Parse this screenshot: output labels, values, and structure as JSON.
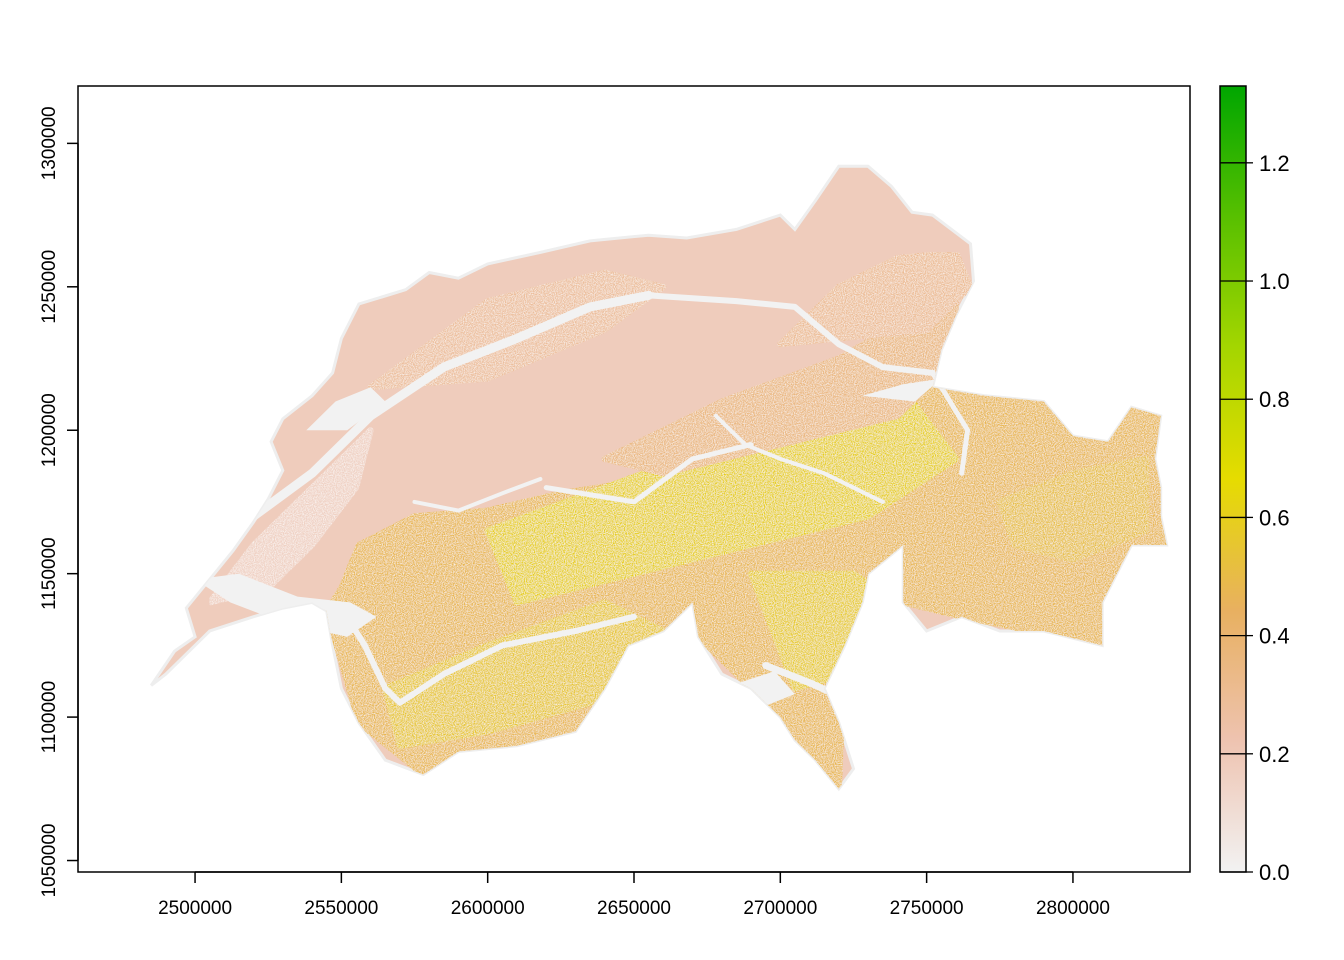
{
  "chart_data": {
    "type": "heatmap",
    "title": "",
    "xlabel": "",
    "ylabel": "",
    "xlim": [
      2460000,
      2840000
    ],
    "ylim": [
      1046000,
      1320000
    ],
    "x_ticks": [
      {
        "value": 2500000,
        "label": "2500000"
      },
      {
        "value": 2550000,
        "label": "2550000"
      },
      {
        "value": 2600000,
        "label": "2600000"
      },
      {
        "value": 2650000,
        "label": "2650000"
      },
      {
        "value": 2700000,
        "label": "2700000"
      },
      {
        "value": 2750000,
        "label": "2750000"
      },
      {
        "value": 2800000,
        "label": "2800000"
      }
    ],
    "y_ticks": [
      {
        "value": 1050000,
        "label": "1050000"
      },
      {
        "value": 1100000,
        "label": "1100000"
      },
      {
        "value": 1150000,
        "label": "1150000"
      },
      {
        "value": 1200000,
        "label": "1200000"
      },
      {
        "value": 1250000,
        "label": "1250000"
      },
      {
        "value": 1300000,
        "label": "1300000"
      }
    ],
    "colorbar": {
      "range": [
        0.0,
        1.33
      ],
      "ticks": [
        {
          "value": 0.0,
          "label": "0.0"
        },
        {
          "value": 0.2,
          "label": "0.2"
        },
        {
          "value": 0.4,
          "label": "0.4"
        },
        {
          "value": 0.6,
          "label": "0.6"
        },
        {
          "value": 0.8,
          "label": "0.8"
        },
        {
          "value": 1.0,
          "label": "1.0"
        },
        {
          "value": 1.2,
          "label": "1.2"
        }
      ],
      "colors": [
        "#f2f2f2",
        "#eec3b0",
        "#e8b060",
        "#e6dc00",
        "#a4d600",
        "#58c000",
        "#00a600"
      ]
    },
    "outline": [
      [
        2485000,
        1111000
      ],
      [
        2493000,
        1123000
      ],
      [
        2500000,
        1128000
      ],
      [
        2497000,
        1138000
      ],
      [
        2505000,
        1148000
      ],
      [
        2513000,
        1158000
      ],
      [
        2520000,
        1168000
      ],
      [
        2525000,
        1176000
      ],
      [
        2530000,
        1186000
      ],
      [
        2526000,
        1196000
      ],
      [
        2530000,
        1204000
      ],
      [
        2540000,
        1212000
      ],
      [
        2547000,
        1220000
      ],
      [
        2550000,
        1232000
      ],
      [
        2556000,
        1244000
      ],
      [
        2572000,
        1249000
      ],
      [
        2580000,
        1255000
      ],
      [
        2590000,
        1253000
      ],
      [
        2600000,
        1258000
      ],
      [
        2618000,
        1262000
      ],
      [
        2635000,
        1266000
      ],
      [
        2655000,
        1268000
      ],
      [
        2668000,
        1267000
      ],
      [
        2685000,
        1270000
      ],
      [
        2700000,
        1275000
      ],
      [
        2705000,
        1270000
      ],
      [
        2712000,
        1280000
      ],
      [
        2720000,
        1292000
      ],
      [
        2730000,
        1292000
      ],
      [
        2738000,
        1285000
      ],
      [
        2745000,
        1276000
      ],
      [
        2752000,
        1275000
      ],
      [
        2765000,
        1265000
      ],
      [
        2766000,
        1252000
      ],
      [
        2760000,
        1240000
      ],
      [
        2755000,
        1228000
      ],
      [
        2752000,
        1215000
      ],
      [
        2770000,
        1212000
      ],
      [
        2790000,
        1210000
      ],
      [
        2800000,
        1198000
      ],
      [
        2812000,
        1196000
      ],
      [
        2820000,
        1208000
      ],
      [
        2830000,
        1205000
      ],
      [
        2828000,
        1190000
      ],
      [
        2830000,
        1180000
      ],
      [
        2830000,
        1170000
      ],
      [
        2832000,
        1160000
      ],
      [
        2820000,
        1160000
      ],
      [
        2815000,
        1150000
      ],
      [
        2810000,
        1140000
      ],
      [
        2810000,
        1125000
      ],
      [
        2790000,
        1130000
      ],
      [
        2775000,
        1130000
      ],
      [
        2762000,
        1135000
      ],
      [
        2750000,
        1130000
      ],
      [
        2742000,
        1140000
      ],
      [
        2742000,
        1160000
      ],
      [
        2730000,
        1150000
      ],
      [
        2728000,
        1140000
      ],
      [
        2722000,
        1125000
      ],
      [
        2715000,
        1110000
      ],
      [
        2720000,
        1098000
      ],
      [
        2725000,
        1082000
      ],
      [
        2720000,
        1075000
      ],
      [
        2712000,
        1085000
      ],
      [
        2705000,
        1092000
      ],
      [
        2700000,
        1100000
      ],
      [
        2690000,
        1110000
      ],
      [
        2680000,
        1115000
      ],
      [
        2672000,
        1128000
      ],
      [
        2670000,
        1140000
      ],
      [
        2660000,
        1130000
      ],
      [
        2648000,
        1125000
      ],
      [
        2640000,
        1110000
      ],
      [
        2630000,
        1095000
      ],
      [
        2610000,
        1090000
      ],
      [
        2590000,
        1088000
      ],
      [
        2578000,
        1080000
      ],
      [
        2565000,
        1085000
      ],
      [
        2556000,
        1098000
      ],
      [
        2550000,
        1110000
      ],
      [
        2547000,
        1125000
      ],
      [
        2545000,
        1137000
      ],
      [
        2540000,
        1140000
      ],
      [
        2530000,
        1138000
      ],
      [
        2520000,
        1135000
      ],
      [
        2505000,
        1130000
      ],
      [
        2490000,
        1115000
      ]
    ],
    "regions": [
      {
        "points": [
          [
            2550000,
            1145000
          ],
          [
            2556000,
            1160000
          ],
          [
            2575000,
            1170000
          ],
          [
            2600000,
            1172000
          ],
          [
            2625000,
            1178000
          ],
          [
            2650000,
            1182000
          ],
          [
            2680000,
            1190000
          ],
          [
            2710000,
            1195000
          ],
          [
            2735000,
            1205000
          ],
          [
            2752000,
            1215000
          ],
          [
            2770000,
            1212000
          ],
          [
            2790000,
            1210000
          ],
          [
            2800000,
            1198000
          ],
          [
            2812000,
            1196000
          ],
          [
            2820000,
            1208000
          ],
          [
            2830000,
            1205000
          ],
          [
            2832000,
            1160000
          ],
          [
            2815000,
            1150000
          ],
          [
            2810000,
            1125000
          ],
          [
            2762000,
            1135000
          ],
          [
            2742000,
            1140000
          ],
          [
            2722000,
            1125000
          ],
          [
            2720000,
            1075000
          ],
          [
            2700000,
            1100000
          ],
          [
            2672000,
            1128000
          ],
          [
            2660000,
            1130000
          ],
          [
            2630000,
            1095000
          ],
          [
            2578000,
            1080000
          ],
          [
            2556000,
            1098000
          ],
          [
            2545000,
            1137000
          ]
        ],
        "value": 0.48
      },
      {
        "points": [
          [
            2600000,
            1165000
          ],
          [
            2640000,
            1180000
          ],
          [
            2680000,
            1195000
          ],
          [
            2720000,
            1205000
          ],
          [
            2745000,
            1210000
          ],
          [
            2760000,
            1190000
          ],
          [
            2730000,
            1170000
          ],
          [
            2690000,
            1160000
          ],
          [
            2650000,
            1150000
          ],
          [
            2610000,
            1140000
          ]
        ],
        "value": 0.6
      },
      {
        "points": [
          [
            2565000,
            1110000
          ],
          [
            2600000,
            1125000
          ],
          [
            2640000,
            1140000
          ],
          [
            2660000,
            1130000
          ],
          [
            2635000,
            1105000
          ],
          [
            2600000,
            1095000
          ],
          [
            2570000,
            1090000
          ]
        ],
        "value": 0.56
      },
      {
        "points": [
          [
            2690000,
            1150000
          ],
          [
            2725000,
            1150000
          ],
          [
            2740000,
            1140000
          ],
          [
            2722000,
            1115000
          ],
          [
            2705000,
            1110000
          ]
        ],
        "value": 0.58
      },
      {
        "points": [
          [
            2775000,
            1175000
          ],
          [
            2800000,
            1185000
          ],
          [
            2825000,
            1190000
          ],
          [
            2825000,
            1165000
          ],
          [
            2800000,
            1155000
          ],
          [
            2780000,
            1160000
          ]
        ],
        "value": 0.52
      },
      {
        "points": [
          [
            2640000,
            1190000
          ],
          [
            2680000,
            1210000
          ],
          [
            2720000,
            1225000
          ],
          [
            2745000,
            1240000
          ],
          [
            2760000,
            1245000
          ],
          [
            2760000,
            1225000
          ],
          [
            2740000,
            1205000
          ],
          [
            2700000,
            1195000
          ],
          [
            2660000,
            1185000
          ]
        ],
        "value": 0.36
      },
      {
        "points": [
          [
            2700000,
            1230000
          ],
          [
            2720000,
            1250000
          ],
          [
            2740000,
            1260000
          ],
          [
            2760000,
            1262000
          ],
          [
            2765000,
            1250000
          ],
          [
            2750000,
            1235000
          ]
        ],
        "value": 0.3
      },
      {
        "points": [
          [
            2560000,
            1215000
          ],
          [
            2600000,
            1245000
          ],
          [
            2640000,
            1255000
          ],
          [
            2660000,
            1250000
          ],
          [
            2640000,
            1235000
          ],
          [
            2600000,
            1218000
          ]
        ],
        "value": 0.28
      },
      {
        "points": [
          [
            2505000,
            1140000
          ],
          [
            2520000,
            1160000
          ],
          [
            2535000,
            1175000
          ],
          [
            2550000,
            1190000
          ],
          [
            2560000,
            1200000
          ],
          [
            2555000,
            1180000
          ],
          [
            2540000,
            1160000
          ],
          [
            2525000,
            1145000
          ]
        ],
        "value": 0.16
      }
    ],
    "rivers": [
      {
        "points": [
          [
            2500000,
            1155000
          ],
          [
            2520000,
            1170000
          ],
          [
            2540000,
            1185000
          ],
          [
            2560000,
            1205000
          ],
          [
            2585000,
            1222000
          ],
          [
            2610000,
            1232000
          ],
          [
            2635000,
            1243000
          ],
          [
            2655000,
            1247000
          ]
        ],
        "width": 9
      },
      {
        "points": [
          [
            2655000,
            1247000
          ],
          [
            2685000,
            1245000
          ],
          [
            2705000,
            1243000
          ],
          [
            2720000,
            1230000
          ],
          [
            2735000,
            1222000
          ],
          [
            2752000,
            1220000
          ]
        ],
        "width": 6
      },
      {
        "points": [
          [
            2752000,
            1220000
          ],
          [
            2758000,
            1210000
          ],
          [
            2764000,
            1200000
          ],
          [
            2762000,
            1185000
          ]
        ],
        "width": 5
      },
      {
        "points": [
          [
            2550000,
            1138000
          ],
          [
            2558000,
            1125000
          ],
          [
            2565000,
            1110000
          ],
          [
            2570000,
            1105000
          ],
          [
            2585000,
            1115000
          ],
          [
            2605000,
            1125000
          ],
          [
            2630000,
            1130000
          ],
          [
            2650000,
            1135000
          ]
        ],
        "width": 6
      },
      {
        "points": [
          [
            2620000,
            1180000
          ],
          [
            2650000,
            1175000
          ],
          [
            2670000,
            1190000
          ],
          [
            2690000,
            1195000
          ]
        ],
        "width": 5
      },
      {
        "points": [
          [
            2695000,
            1118000
          ],
          [
            2710000,
            1112000
          ],
          [
            2725000,
            1105000
          ]
        ],
        "width": 7
      },
      {
        "points": [
          [
            2678000,
            1205000
          ],
          [
            2688000,
            1195000
          ],
          [
            2700000,
            1190000
          ],
          [
            2715000,
            1185000
          ],
          [
            2735000,
            1175000
          ]
        ],
        "width": 4
      },
      {
        "points": [
          [
            2575000,
            1175000
          ],
          [
            2590000,
            1172000
          ],
          [
            2605000,
            1178000
          ],
          [
            2618000,
            1183000
          ]
        ],
        "width": 4
      }
    ],
    "lakes": [
      {
        "points": [
          [
            2500000,
            1148000
          ],
          [
            2515000,
            1150000
          ],
          [
            2535000,
            1142000
          ],
          [
            2553000,
            1140000
          ],
          [
            2562000,
            1135000
          ],
          [
            2552000,
            1128000
          ],
          [
            2530000,
            1133000
          ],
          [
            2512000,
            1140000
          ]
        ],
        "value": 0.0
      },
      {
        "points": [
          [
            2538000,
            1200000
          ],
          [
            2548000,
            1210000
          ],
          [
            2560000,
            1215000
          ],
          [
            2565000,
            1210000
          ],
          [
            2552000,
            1200000
          ]
        ],
        "value": 0.0
      },
      {
        "points": [
          [
            2686000,
            1112000
          ],
          [
            2698000,
            1116000
          ],
          [
            2705000,
            1108000
          ],
          [
            2695000,
            1104000
          ]
        ],
        "value": 0.0
      },
      {
        "points": [
          [
            2728000,
            1212000
          ],
          [
            2742000,
            1216000
          ],
          [
            2755000,
            1218000
          ],
          [
            2746000,
            1210000
          ]
        ],
        "value": 0.0
      }
    ]
  }
}
